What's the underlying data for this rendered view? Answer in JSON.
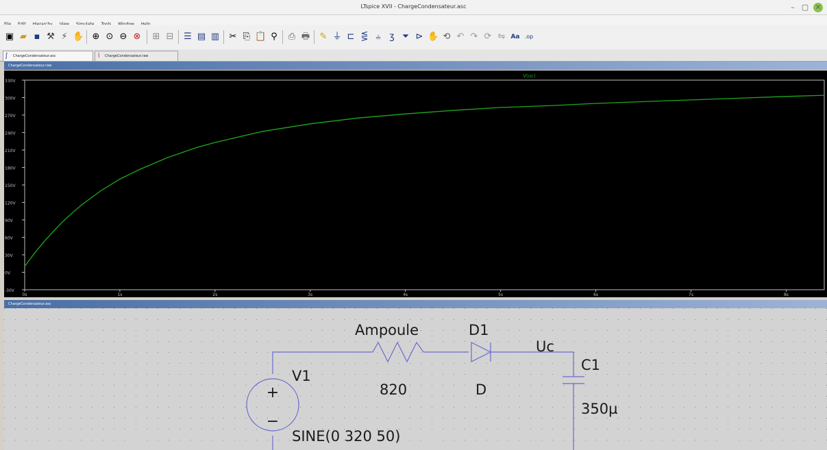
{
  "window": {
    "title": "LTspice XVII - ChargeCondensateur.asc",
    "min_glyph": "–",
    "max_glyph": "▢",
    "close_glyph": "✕"
  },
  "menu": [
    "File",
    "Edit",
    "Hierarchy",
    "View",
    "Simulate",
    "Tools",
    "Window",
    "Help"
  ],
  "tabs": [
    {
      "label": "ChargeCondensateur.asc",
      "icon": "schematic-icon"
    },
    {
      "label": "ChargeCondensateur.raw",
      "icon": "waveform-icon"
    }
  ],
  "plot_pane": {
    "title": "ChargeCondensateur.raw"
  },
  "schematic_pane": {
    "title": "ChargeCondensateur.asc"
  },
  "schematic": {
    "wire_color": "#6a6ad0",
    "text_color": "#1a1a1a",
    "labels": {
      "resistor_name": "Ampoule",
      "resistor_value": "820",
      "diode_name": "D1",
      "diode_value": "D",
      "net_label": "Uc",
      "cap_name": "C1",
      "cap_value": "350µ",
      "source_name": "V1",
      "source_value": "SINE(0 320 50)",
      "plus": "+",
      "minus": "−"
    }
  },
  "chart_data": {
    "type": "line",
    "title": "",
    "xlabel": "",
    "ylabel": "",
    "grid": false,
    "background": "#000000",
    "axis_color": "#c0c0c0",
    "xlim": [
      0,
      8.4
    ],
    "ylim": [
      -30,
      330
    ],
    "x_ticks": [
      0,
      1,
      2,
      3,
      4,
      5,
      6,
      7,
      8
    ],
    "x_tick_labels": [
      "0s",
      "1s",
      "2s",
      "3s",
      "4s",
      "5s",
      "6s",
      "7s",
      "8s"
    ],
    "y_ticks": [
      330,
      300,
      270,
      240,
      210,
      180,
      150,
      120,
      90,
      60,
      30,
      0,
      -30
    ],
    "y_tick_labels": [
      "330V",
      "300V",
      "270V",
      "240V",
      "210V",
      "180V",
      "150V",
      "120V",
      "90V",
      "60V",
      "30V",
      "0V",
      "-30V"
    ],
    "series": [
      {
        "name": "V(uc)",
        "color": "#1fa81f",
        "x": [
          0,
          0.1,
          0.2,
          0.3,
          0.4,
          0.5,
          0.6,
          0.8,
          1.0,
          1.2,
          1.5,
          1.8,
          2.0,
          2.5,
          3.0,
          3.5,
          4.0,
          4.5,
          5.0,
          5.5,
          6.0,
          6.5,
          7.0,
          7.5,
          8.0,
          8.4
        ],
        "values": [
          10,
          32,
          52,
          70,
          87,
          102,
          116,
          140,
          160,
          176,
          197,
          214,
          223,
          242,
          255,
          265,
          272,
          278,
          283,
          286,
          290,
          293,
          296,
          299,
          302,
          304
        ]
      }
    ]
  }
}
